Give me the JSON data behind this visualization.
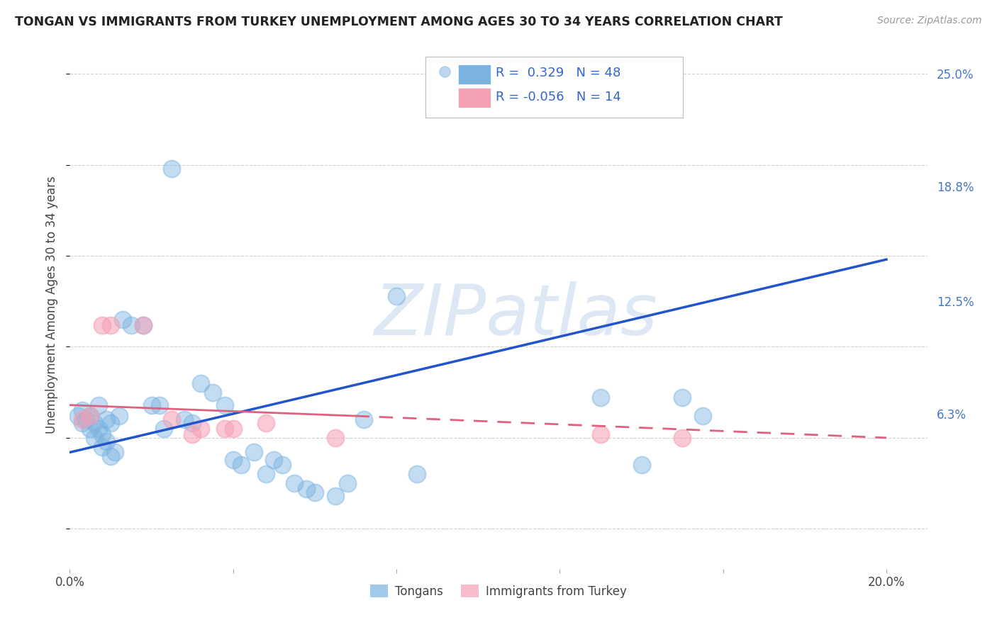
{
  "title": "TONGAN VS IMMIGRANTS FROM TURKEY UNEMPLOYMENT AMONG AGES 30 TO 34 YEARS CORRELATION CHART",
  "source": "Source: ZipAtlas.com",
  "ylabel": "Unemployment Among Ages 30 to 34 years",
  "xlim": [
    0.0,
    0.21
  ],
  "ylim": [
    -0.022,
    0.268
  ],
  "xticks": [
    0.0,
    0.04,
    0.08,
    0.12,
    0.16,
    0.2
  ],
  "xticklabels": [
    "0.0%",
    "",
    "",
    "",
    "",
    "20.0%"
  ],
  "yticks_right": [
    0.0,
    0.063,
    0.125,
    0.188,
    0.25
  ],
  "yticklabels_right": [
    "",
    "6.3%",
    "12.5%",
    "18.8%",
    "25.0%"
  ],
  "blue_R": "0.329",
  "blue_N": "48",
  "pink_R": "-0.056",
  "pink_N": "14",
  "legend1_label": "Tongans",
  "legend2_label": "Immigrants from Turkey",
  "watermark": "ZIPatlas",
  "background_color": "#ffffff",
  "grid_color": "#cccccc",
  "blue_color": "#7ab3e0",
  "pink_color": "#f5a0b5",
  "blue_line_color": "#2255cc",
  "pink_line_color": "#e06080",
  "blue_scatter": [
    [
      0.002,
      0.062
    ],
    [
      0.003,
      0.065
    ],
    [
      0.003,
      0.058
    ],
    [
      0.004,
      0.06
    ],
    [
      0.005,
      0.055
    ],
    [
      0.005,
      0.062
    ],
    [
      0.006,
      0.058
    ],
    [
      0.006,
      0.05
    ],
    [
      0.007,
      0.055
    ],
    [
      0.007,
      0.068
    ],
    [
      0.008,
      0.052
    ],
    [
      0.008,
      0.045
    ],
    [
      0.009,
      0.048
    ],
    [
      0.009,
      0.06
    ],
    [
      0.01,
      0.058
    ],
    [
      0.01,
      0.04
    ],
    [
      0.011,
      0.042
    ],
    [
      0.012,
      0.062
    ],
    [
      0.013,
      0.115
    ],
    [
      0.015,
      0.112
    ],
    [
      0.018,
      0.112
    ],
    [
      0.02,
      0.068
    ],
    [
      0.022,
      0.068
    ],
    [
      0.023,
      0.055
    ],
    [
      0.025,
      0.198
    ],
    [
      0.028,
      0.06
    ],
    [
      0.03,
      0.058
    ],
    [
      0.032,
      0.08
    ],
    [
      0.035,
      0.075
    ],
    [
      0.038,
      0.068
    ],
    [
      0.04,
      0.038
    ],
    [
      0.042,
      0.035
    ],
    [
      0.045,
      0.042
    ],
    [
      0.048,
      0.03
    ],
    [
      0.05,
      0.038
    ],
    [
      0.052,
      0.035
    ],
    [
      0.055,
      0.025
    ],
    [
      0.058,
      0.022
    ],
    [
      0.06,
      0.02
    ],
    [
      0.065,
      0.018
    ],
    [
      0.068,
      0.025
    ],
    [
      0.072,
      0.06
    ],
    [
      0.08,
      0.128
    ],
    [
      0.085,
      0.03
    ],
    [
      0.15,
      0.072
    ],
    [
      0.155,
      0.062
    ],
    [
      0.13,
      0.072
    ],
    [
      0.14,
      0.035
    ]
  ],
  "pink_scatter": [
    [
      0.003,
      0.06
    ],
    [
      0.005,
      0.062
    ],
    [
      0.008,
      0.112
    ],
    [
      0.01,
      0.112
    ],
    [
      0.018,
      0.112
    ],
    [
      0.025,
      0.06
    ],
    [
      0.03,
      0.052
    ],
    [
      0.032,
      0.055
    ],
    [
      0.038,
      0.055
    ],
    [
      0.04,
      0.055
    ],
    [
      0.048,
      0.058
    ],
    [
      0.065,
      0.05
    ],
    [
      0.15,
      0.05
    ],
    [
      0.13,
      0.052
    ]
  ],
  "blue_trendline": [
    [
      0.0,
      0.042
    ],
    [
      0.2,
      0.148
    ]
  ],
  "pink_trendline_solid": [
    [
      0.0,
      0.068
    ],
    [
      0.07,
      0.062
    ]
  ],
  "pink_trendline_dashed": [
    [
      0.07,
      0.062
    ],
    [
      0.2,
      0.05
    ]
  ]
}
